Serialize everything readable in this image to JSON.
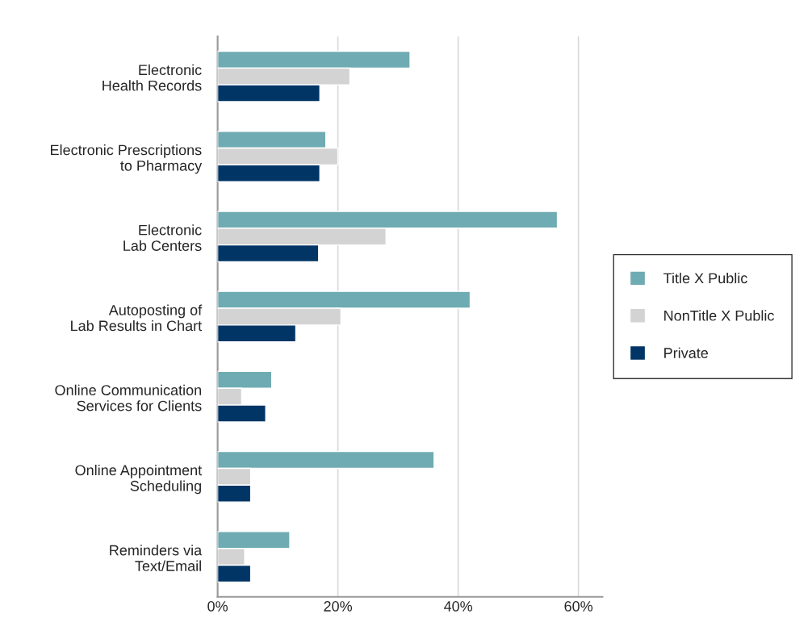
{
  "chart_data": {
    "type": "bar",
    "orientation": "horizontal",
    "categories": [
      "Electronic\nHealth Records",
      "Electronic Prescriptions\nto Pharmacy",
      "Electronic\nLab Centers",
      "Autoposting of\nLab Results in Chart",
      "Online Communication\nServices for Clients",
      "Online Appointment\nScheduling",
      "Reminders via\nText/Email"
    ],
    "series": [
      {
        "name": "Title X Public",
        "color": "#6fabb2",
        "values": [
          32,
          18,
          56.5,
          42,
          9,
          36,
          12
        ]
      },
      {
        "name": "NonTitle X Public",
        "color": "#d3d3d3",
        "values": [
          22,
          20,
          28,
          20.5,
          4,
          5.5,
          4.5
        ]
      },
      {
        "name": "Private",
        "color": "#003566",
        "values": [
          17,
          17,
          16.8,
          13,
          8,
          5.5,
          5.5
        ]
      }
    ],
    "xlim": [
      0,
      64
    ],
    "xticks": [
      {
        "value": 0,
        "label": "0%"
      },
      {
        "value": 20,
        "label": "20%"
      },
      {
        "value": 40,
        "label": "40%"
      },
      {
        "value": 60,
        "label": "60%"
      }
    ],
    "grid": "x",
    "legend": "right"
  }
}
